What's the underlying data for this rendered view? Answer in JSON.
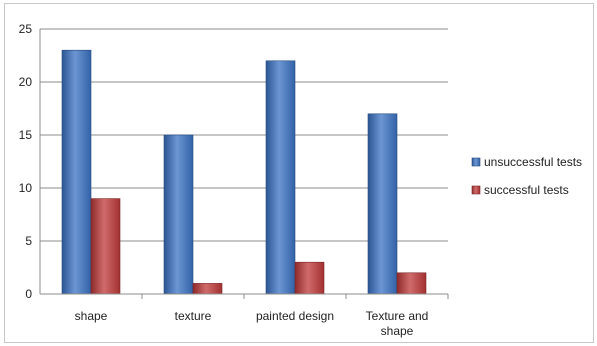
{
  "chart_data": {
    "type": "bar",
    "categories": [
      "shape",
      "texture",
      "painted design",
      "Texture and shape"
    ],
    "series": [
      {
        "name": "unsuccessful tests",
        "values": [
          23,
          15,
          22,
          17
        ],
        "color": "#3b73c4"
      },
      {
        "name": "successful tests",
        "values": [
          9,
          1,
          3,
          2
        ],
        "color": "#c0393a"
      }
    ],
    "title": "",
    "xlabel": "",
    "ylabel": "",
    "ylim": [
      0,
      25
    ],
    "yticks": [
      0,
      5,
      10,
      15,
      20,
      25
    ],
    "grid": true,
    "legend_position": "right"
  }
}
